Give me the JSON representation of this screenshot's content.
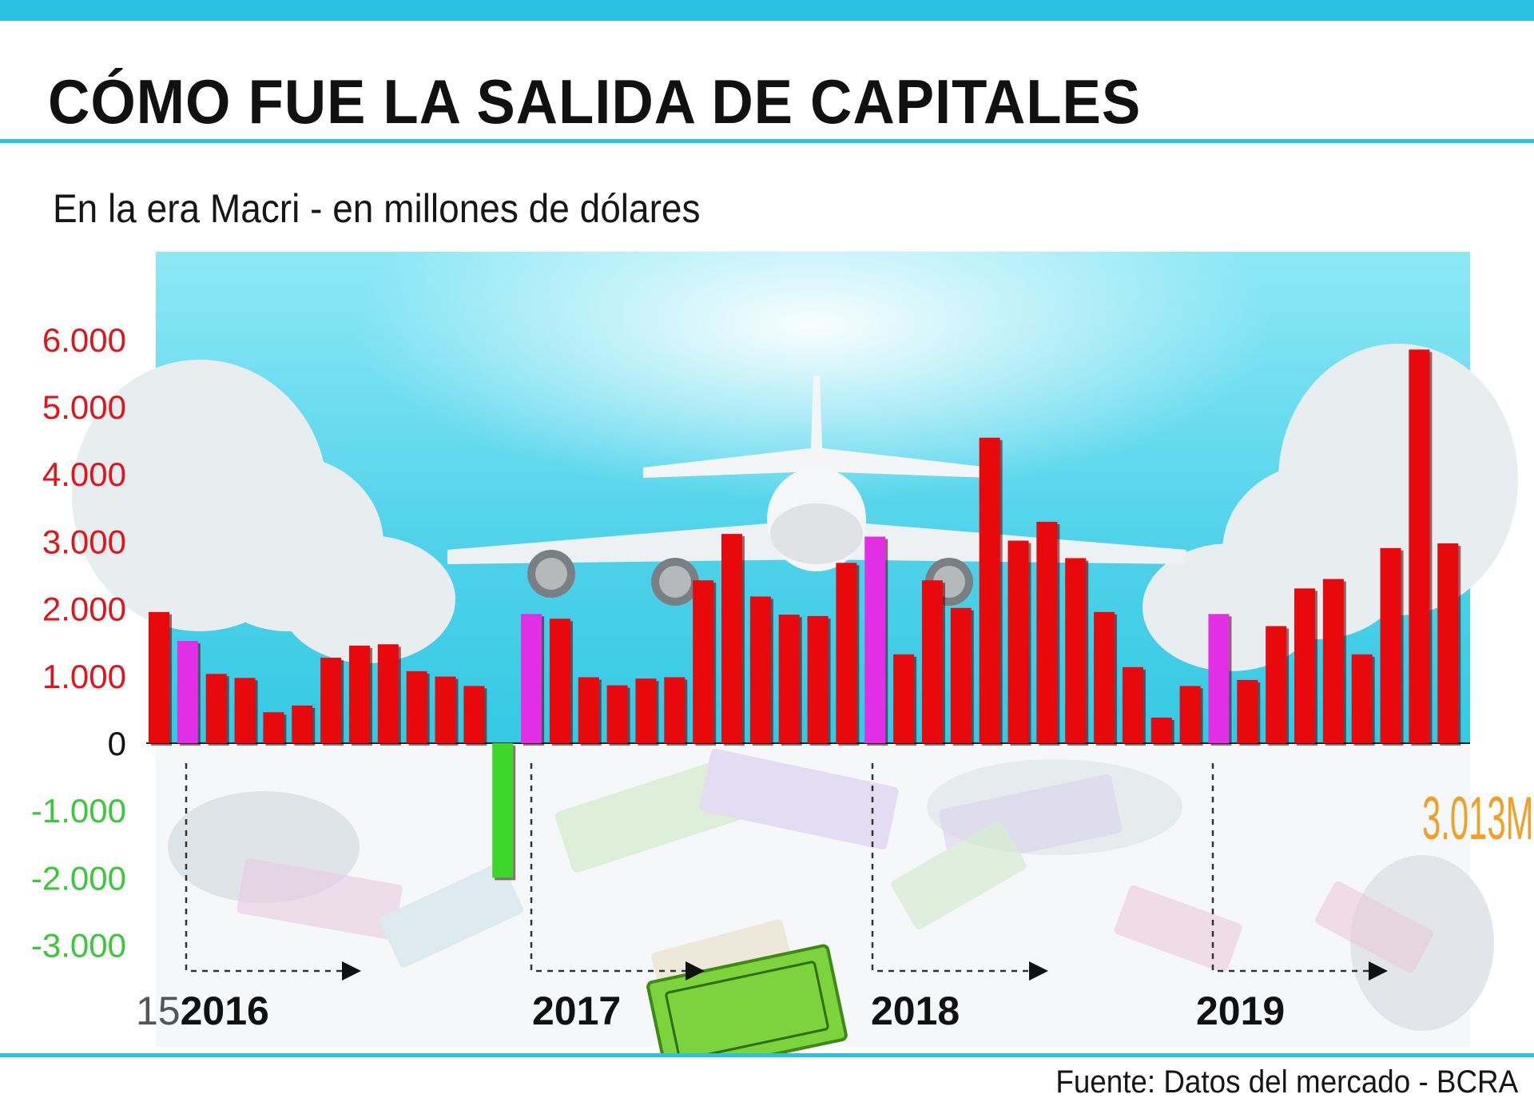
{
  "title": "CÓMO FUE LA SALIDA DE CAPITALES",
  "subtitle": "En la era Macri - en millones de dólares",
  "source": "Fuente: Datos del mercado  -  BCRA",
  "annotation": "3.013M.",
  "colors": {
    "accent": "#2bc1e2",
    "bar": "#e8090c",
    "highlight": "#e22fe6",
    "negative": "#3dd62a",
    "positive_tick": "#e0151b",
    "negative_tick": "#3cc63c",
    "annotation": "#f0a02a",
    "sky_top": "#8ee8f6",
    "sky_bottom": "#35c9e3"
  },
  "chart_data": {
    "type": "bar",
    "title": "CÓMO FUE LA SALIDA DE CAPITALES",
    "subtitle": "En la era Macri - en millones de dólares",
    "ylim": [
      -3300,
      6600
    ],
    "yticks": [
      {
        "value": 6000,
        "label": "6.000"
      },
      {
        "value": 5000,
        "label": "5.000"
      },
      {
        "value": 4000,
        "label": "4.000"
      },
      {
        "value": 3000,
        "label": "3.000"
      },
      {
        "value": 2000,
        "label": "2.000"
      },
      {
        "value": 1000,
        "label": "1.000"
      },
      {
        "value": 0,
        "label": "0"
      },
      {
        "value": -1000,
        "label": "-1.000"
      },
      {
        "value": -2000,
        "label": "-2.000"
      },
      {
        "value": -3000,
        "label": "-3.000"
      }
    ],
    "years": [
      {
        "label": "2016",
        "prefix": "15",
        "start_index": 1
      },
      {
        "label": "2017",
        "start_index": 13
      },
      {
        "label": "2018",
        "start_index": 25
      },
      {
        "label": "2019",
        "start_index": 37
      }
    ],
    "highlight_indices": [
      1,
      13,
      25,
      37
    ],
    "values": [
      1950,
      1520,
      1030,
      970,
      460,
      560,
      1270,
      1450,
      1470,
      1070,
      990,
      850,
      -2000,
      1920,
      1850,
      980,
      860,
      960,
      980,
      2420,
      3110,
      2180,
      1910,
      1890,
      2680,
      3070,
      1320,
      2420,
      2010,
      4540,
      3010,
      3290,
      2750,
      1950,
      1130,
      380,
      850,
      1920,
      940,
      1740,
      2300,
      2440,
      1320,
      2900,
      5850,
      2970
    ]
  }
}
